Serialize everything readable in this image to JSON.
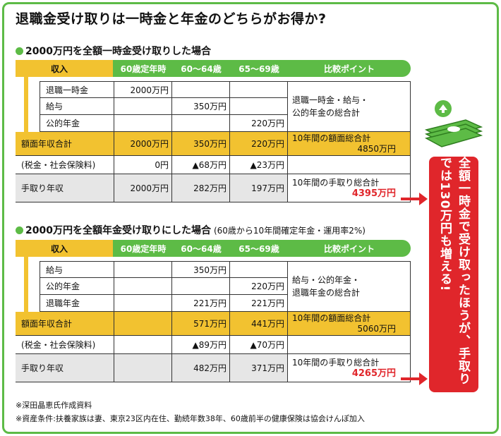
{
  "title": "退職金受け取りは一時金と年金のどちらがお得か?",
  "section1": {
    "title": "2000万円を全額一時金受け取りした場合",
    "header": {
      "income": "収入",
      "cols": [
        "60歳定年時",
        "60〜64歳",
        "65〜69歳",
        "比較ポイント"
      ]
    },
    "rows": [
      {
        "label": "退職一時金",
        "v60": "2000万円",
        "v64": "",
        "v69": ""
      },
      {
        "label": "給与",
        "v60": "",
        "v64": "350万円",
        "v69": ""
      },
      {
        "label": "公的年金",
        "v60": "",
        "v64": "",
        "v69": "220万円"
      }
    ],
    "point1": [
      "退職一時金・給与・",
      "公的年金の総合計"
    ],
    "gross": {
      "label": "額面年収合計",
      "v60": "2000万円",
      "v64": "350万円",
      "v69": "220万円",
      "point_label": "10年間の額面総合計",
      "point_value": "4850万円"
    },
    "tax": {
      "label": "(税金・社会保険料)",
      "v60": "0円",
      "v64": "▲68万円",
      "v69": "▲23万円"
    },
    "net": {
      "label": "手取り年収",
      "v60": "2000万円",
      "v64": "282万円",
      "v69": "197万円",
      "point_label": "10年間の手取り総合計",
      "point_value": "4395万円"
    }
  },
  "section2": {
    "title": "2000万円を全額年金受け取りにした場合",
    "note": "(60歳から10年間確定年金・運用率2%)",
    "header": {
      "income": "収入",
      "cols": [
        "60歳定年時",
        "60〜64歳",
        "65〜69歳",
        "比較ポイント"
      ]
    },
    "rows": [
      {
        "label": "給与",
        "v60": "",
        "v64": "350万円",
        "v69": ""
      },
      {
        "label": "公的年金",
        "v60": "",
        "v64": "",
        "v69": "220万円"
      },
      {
        "label": "退職年金",
        "v60": "",
        "v64": "221万円",
        "v69": "221万円"
      }
    ],
    "point1": [
      "給与・公的年金・",
      "退職年金の総合計"
    ],
    "gross": {
      "label": "額面年収合計",
      "v60": "",
      "v64": "571万円",
      "v69": "441万円",
      "point_label": "10年間の額面総合計",
      "point_value": "5060万円"
    },
    "tax": {
      "label": "(税金・社会保険料)",
      "v60": "",
      "v64": "▲89万円",
      "v69": "▲70万円"
    },
    "net": {
      "label": "手取り年収",
      "v60": "",
      "v64": "482万円",
      "v69": "371万円",
      "point_label": "10年間の手取り総合計",
      "point_value": "4265万円"
    }
  },
  "callout": "全額一時金で受け取ったほうが、手取りでは130万円も増える!",
  "footnotes": [
    "※深田晶恵氏作成資料",
    "※資産条件:扶養家族は妻、東京23区内在住、勤続年数38年、60歳前半の健康保険は協会けんぽ加入"
  ],
  "colors": {
    "green": "#5dbb46",
    "yellow": "#f2c230",
    "red": "#e0262b"
  },
  "icon": "money-stack-icon"
}
